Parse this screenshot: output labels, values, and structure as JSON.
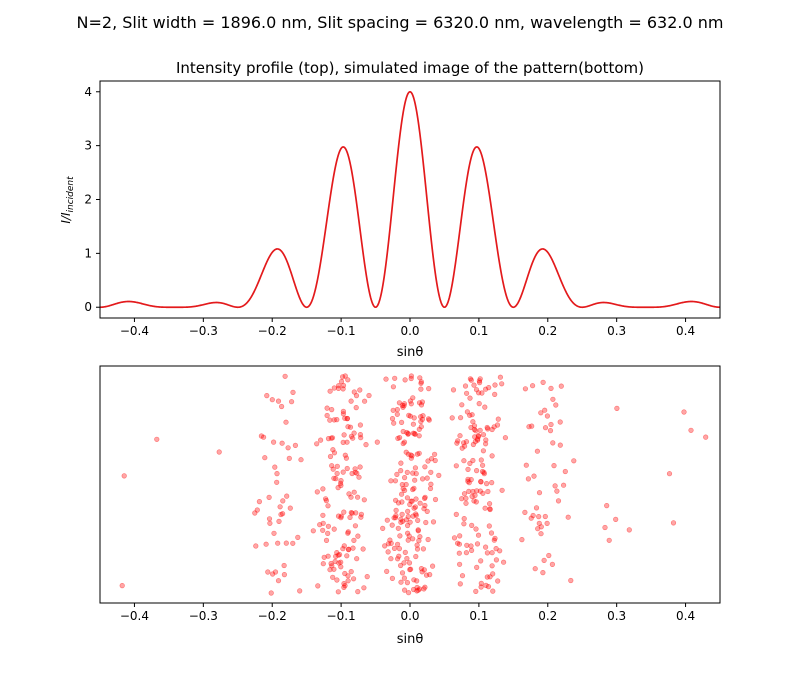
{
  "figure": {
    "suptitle": "N=2, Slit width = 1896.0 nm, Slit spacing = 6320.0 nm,  wavelength = 632.0 nm"
  },
  "chart_data": [
    {
      "type": "line",
      "title": "Intensity profile (top),  simulated image of the pattern(bottom)",
      "xlabel": "sinθ",
      "ylabel": "I/I_incident",
      "xlim": [
        -0.45,
        0.45
      ],
      "ylim": [
        -0.2,
        4.2
      ],
      "xticks": [
        "−0.4",
        "−0.3",
        "−0.2",
        "−0.1",
        "0.0",
        "0.1",
        "0.2",
        "0.3",
        "0.4"
      ],
      "yticks": [
        "0",
        "1",
        "2",
        "3",
        "4"
      ],
      "grid": false,
      "line_color": "#e31a1c",
      "physics": {
        "slits": 2,
        "slit_width_nm": 1896.0,
        "slit_spacing_nm": 6320.0,
        "wavelength_nm": 632.0
      }
    },
    {
      "type": "scatter",
      "title": "",
      "xlabel": "sinθ",
      "ylabel": "",
      "xlim": [
        -0.45,
        0.45
      ],
      "xticks": [
        "−0.4",
        "−0.3",
        "−0.2",
        "−0.1",
        "0.0",
        "0.1",
        "0.2",
        "0.3",
        "0.4"
      ],
      "grid": false,
      "point_color": "#ff0000",
      "point_alpha": 0.35,
      "points_per_unit_intensity": 950
    }
  ]
}
